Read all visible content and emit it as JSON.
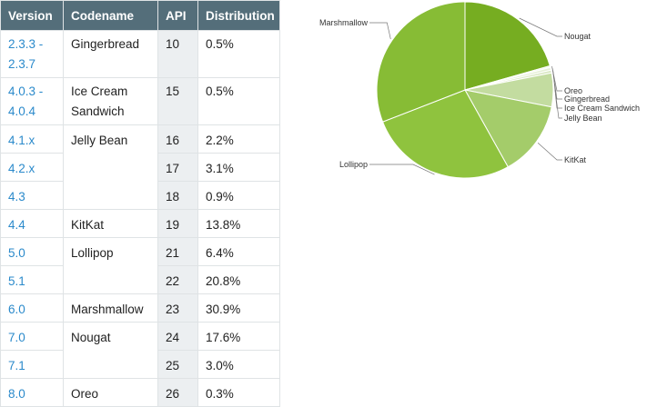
{
  "table": {
    "headers": [
      "Version",
      "Codename",
      "API",
      "Distribution"
    ],
    "rows": [
      {
        "version": "2.3.3 -\n2.3.7",
        "codename": "Gingerbread",
        "api": "10",
        "dist": "0.5%"
      },
      {
        "version": "4.0.3 -\n4.0.4",
        "codename": "Ice Cream\nSandwich",
        "api": "15",
        "dist": "0.5%"
      },
      {
        "version": "4.1.x",
        "codename": "Jelly Bean",
        "api": "16",
        "dist": "2.2%"
      },
      {
        "version": "4.2.x",
        "codename": "",
        "api": "17",
        "dist": "3.1%"
      },
      {
        "version": "4.3",
        "codename": "",
        "api": "18",
        "dist": "0.9%"
      },
      {
        "version": "4.4",
        "codename": "KitKat",
        "api": "19",
        "dist": "13.8%"
      },
      {
        "version": "5.0",
        "codename": "Lollipop",
        "api": "21",
        "dist": "6.4%"
      },
      {
        "version": "5.1",
        "codename": "",
        "api": "22",
        "dist": "20.8%"
      },
      {
        "version": "6.0",
        "codename": "Marshmallow",
        "api": "23",
        "dist": "30.9%"
      },
      {
        "version": "7.0",
        "codename": "Nougat",
        "api": "24",
        "dist": "17.6%"
      },
      {
        "version": "7.1",
        "codename": "",
        "api": "25",
        "dist": "3.0%"
      },
      {
        "version": "8.0",
        "codename": "Oreo",
        "api": "26",
        "dist": "0.3%"
      }
    ]
  },
  "chart_data": {
    "type": "pie",
    "slices": [
      {
        "label": "Nougat",
        "value": 20.6,
        "color": "#76ad21"
      },
      {
        "label": "Oreo",
        "value": 0.3,
        "color": "#f2f7ea"
      },
      {
        "label": "Gingerbread",
        "value": 0.5,
        "color": "#e6f0d6"
      },
      {
        "label": "Ice Cream Sandwich",
        "value": 0.5,
        "color": "#d9e8c2"
      },
      {
        "label": "Jelly Bean",
        "value": 6.2,
        "color": "#c3dca0"
      },
      {
        "label": "KitKat",
        "value": 13.8,
        "color": "#a4cc6a"
      },
      {
        "label": "Lollipop",
        "value": 27.2,
        "color": "#8fc33e"
      },
      {
        "label": "Marshmallow",
        "value": 30.9,
        "color": "#87bc35"
      }
    ]
  },
  "colors": {
    "header_bg": "#546e7a",
    "version_link": "#2b8acb",
    "shaded_cell": "#eceff1",
    "border": "#dfe3e5"
  }
}
